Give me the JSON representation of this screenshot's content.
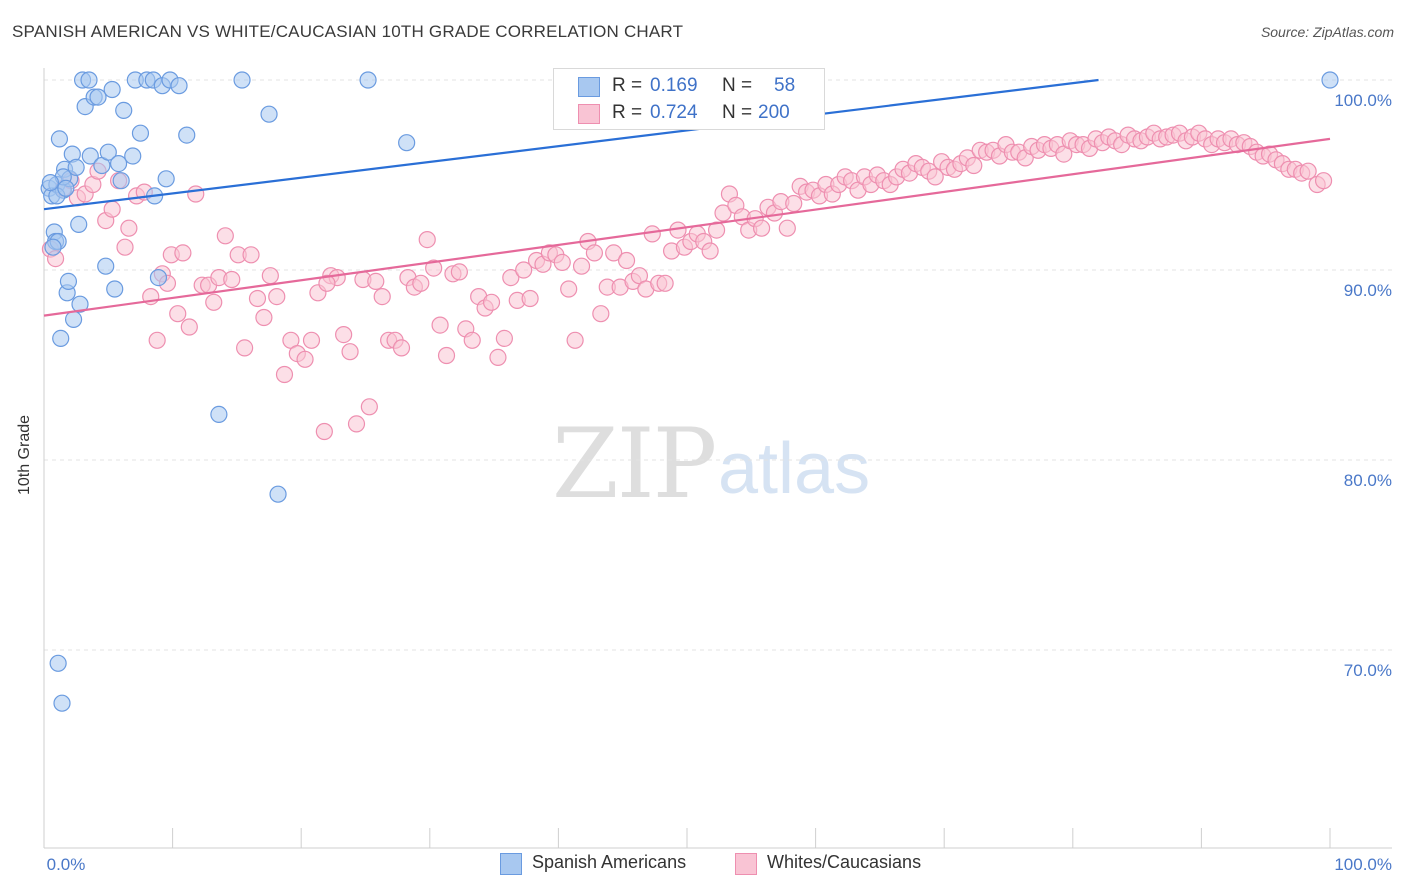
{
  "title": "SPANISH AMERICAN VS WHITE/CAUCASIAN 10TH GRADE CORRELATION CHART",
  "source": "Source: ZipAtlas.com",
  "watermark": {
    "zip": "ZIP",
    "atlas": "atlas"
  },
  "legend": {
    "r_label": "R =",
    "n_label": "N =",
    "rows": [
      {
        "r": "0.169",
        "n": "58",
        "color": "#a8c8f0",
        "edge": "#6a9be0"
      },
      {
        "r": "0.724",
        "n": "200",
        "color": "#f9c4d4",
        "edge": "#ee8fb0"
      }
    ]
  },
  "bottom_legend": [
    {
      "label": "Spanish Americans",
      "color": "#a8c8f0",
      "edge": "#6a9be0"
    },
    {
      "label": "Whites/Caucasians",
      "color": "#f9c4d4",
      "edge": "#ee8fb0"
    }
  ],
  "chart_data": {
    "type": "scatter",
    "title": "SPANISH AMERICAN VS WHITE/CAUCASIAN 10TH GRADE CORRELATION CHART",
    "xlabel": "",
    "ylabel": "10th Grade",
    "xlim": [
      0,
      100
    ],
    "ylim": [
      60.5,
      100.8
    ],
    "x_tick_labels": [
      "0.0%",
      "100.0%"
    ],
    "y_ticks": [
      70,
      80,
      90,
      100
    ],
    "y_tick_labels": [
      "70.0%",
      "80.0%",
      "90.0%",
      "100.0%"
    ],
    "grid": true,
    "legend_position": "top-center",
    "series": [
      {
        "name": "Spanish Americans",
        "color": "#6a9be0",
        "fill": "#a8c8f0",
        "trend": {
          "x": [
            0,
            82
          ],
          "y": [
            93.2,
            100.0
          ],
          "color": "#2a6fd6"
        },
        "points": [
          [
            0.4,
            94.3
          ],
          [
            0.6,
            93.9
          ],
          [
            0.8,
            92.0
          ],
          [
            0.9,
            91.5
          ],
          [
            1.0,
            94.5
          ],
          [
            1.1,
            91.5
          ],
          [
            1.2,
            96.9
          ],
          [
            1.3,
            86.4
          ],
          [
            1.5,
            94.2
          ],
          [
            1.6,
            95.3
          ],
          [
            1.8,
            88.8
          ],
          [
            1.9,
            89.4
          ],
          [
            2.0,
            94.8
          ],
          [
            2.2,
            96.1
          ],
          [
            2.3,
            87.4
          ],
          [
            2.5,
            95.4
          ],
          [
            2.7,
            92.4
          ],
          [
            2.8,
            88.2
          ],
          [
            3.0,
            100.0
          ],
          [
            3.2,
            98.6
          ],
          [
            3.5,
            100.0
          ],
          [
            3.6,
            96.0
          ],
          [
            3.9,
            99.1
          ],
          [
            4.2,
            99.1
          ],
          [
            4.5,
            95.5
          ],
          [
            4.8,
            90.2
          ],
          [
            5.0,
            96.2
          ],
          [
            5.3,
            99.5
          ],
          [
            5.5,
            89.0
          ],
          [
            5.8,
            95.6
          ],
          [
            6.0,
            94.7
          ],
          [
            6.2,
            98.4
          ],
          [
            6.9,
            96.0
          ],
          [
            7.1,
            100.0
          ],
          [
            7.5,
            97.2
          ],
          [
            8.0,
            100.0
          ],
          [
            8.5,
            100.0
          ],
          [
            8.6,
            93.9
          ],
          [
            8.9,
            89.6
          ],
          [
            9.2,
            99.7
          ],
          [
            9.5,
            94.8
          ],
          [
            9.8,
            100.0
          ],
          [
            10.5,
            99.7
          ],
          [
            11.1,
            97.1
          ],
          [
            13.6,
            82.4
          ],
          [
            15.4,
            100.0
          ],
          [
            17.5,
            98.2
          ],
          [
            18.2,
            78.2
          ],
          [
            25.2,
            100.0
          ],
          [
            28.2,
            96.7
          ],
          [
            1.1,
            69.3
          ],
          [
            1.4,
            67.2
          ],
          [
            1.5,
            94.9
          ],
          [
            1.0,
            93.9
          ],
          [
            0.5,
            94.6
          ],
          [
            1.7,
            94.3
          ],
          [
            0.7,
            91.2
          ],
          [
            100.0,
            100.0
          ]
        ]
      },
      {
        "name": "Whites/Caucasians",
        "color": "#ee8fb0",
        "fill": "#f9c4d4",
        "trend": {
          "x": [
            0,
            100
          ],
          "y": [
            87.6,
            96.9
          ],
          "color": "#e5699a"
        },
        "points": [
          [
            0.5,
            91.1
          ],
          [
            0.9,
            90.6
          ],
          [
            1.5,
            94.3
          ],
          [
            2.1,
            94.7
          ],
          [
            2.6,
            93.8
          ],
          [
            3.2,
            94.0
          ],
          [
            3.8,
            94.5
          ],
          [
            4.2,
            95.2
          ],
          [
            4.8,
            92.6
          ],
          [
            5.3,
            93.2
          ],
          [
            5.8,
            94.7
          ],
          [
            6.3,
            91.2
          ],
          [
            6.6,
            92.2
          ],
          [
            7.2,
            93.9
          ],
          [
            7.8,
            94.1
          ],
          [
            8.3,
            88.6
          ],
          [
            8.8,
            86.3
          ],
          [
            9.2,
            89.8
          ],
          [
            9.6,
            89.3
          ],
          [
            9.9,
            90.8
          ],
          [
            10.4,
            87.7
          ],
          [
            10.8,
            90.9
          ],
          [
            11.3,
            87.0
          ],
          [
            11.8,
            94.0
          ],
          [
            12.3,
            89.2
          ],
          [
            12.8,
            89.2
          ],
          [
            13.2,
            88.3
          ],
          [
            13.6,
            89.6
          ],
          [
            14.1,
            91.8
          ],
          [
            14.6,
            89.5
          ],
          [
            15.1,
            90.8
          ],
          [
            15.6,
            85.9
          ],
          [
            16.1,
            90.8
          ],
          [
            16.6,
            88.5
          ],
          [
            17.1,
            87.5
          ],
          [
            17.6,
            89.7
          ],
          [
            18.1,
            88.6
          ],
          [
            18.7,
            84.5
          ],
          [
            19.2,
            86.3
          ],
          [
            19.7,
            85.6
          ],
          [
            20.3,
            85.3
          ],
          [
            20.8,
            86.3
          ],
          [
            21.3,
            88.8
          ],
          [
            21.8,
            81.5
          ],
          [
            22.3,
            89.7
          ],
          [
            22.8,
            89.6
          ],
          [
            23.3,
            86.6
          ],
          [
            23.8,
            85.7
          ],
          [
            24.3,
            81.9
          ],
          [
            24.8,
            89.5
          ],
          [
            25.3,
            82.8
          ],
          [
            25.8,
            89.4
          ],
          [
            26.3,
            88.6
          ],
          [
            26.8,
            86.3
          ],
          [
            27.3,
            86.3
          ],
          [
            27.8,
            85.9
          ],
          [
            28.3,
            89.6
          ],
          [
            28.8,
            89.1
          ],
          [
            29.3,
            89.3
          ],
          [
            29.8,
            91.6
          ],
          [
            30.3,
            90.1
          ],
          [
            30.8,
            87.1
          ],
          [
            31.3,
            85.5
          ],
          [
            31.8,
            89.8
          ],
          [
            32.3,
            89.9
          ],
          [
            32.8,
            86.9
          ],
          [
            33.3,
            86.3
          ],
          [
            33.8,
            88.6
          ],
          [
            34.3,
            88.0
          ],
          [
            34.8,
            88.3
          ],
          [
            35.3,
            85.4
          ],
          [
            35.8,
            86.4
          ],
          [
            36.3,
            89.6
          ],
          [
            36.8,
            88.4
          ],
          [
            37.3,
            90.0
          ],
          [
            37.8,
            88.5
          ],
          [
            38.3,
            90.5
          ],
          [
            38.8,
            90.3
          ],
          [
            39.3,
            90.9
          ],
          [
            39.8,
            90.8
          ],
          [
            40.3,
            90.4
          ],
          [
            40.8,
            89.0
          ],
          [
            41.3,
            86.3
          ],
          [
            41.8,
            90.2
          ],
          [
            42.3,
            91.5
          ],
          [
            42.8,
            90.9
          ],
          [
            43.3,
            87.7
          ],
          [
            43.8,
            89.1
          ],
          [
            44.3,
            90.9
          ],
          [
            44.8,
            89.1
          ],
          [
            45.3,
            90.5
          ],
          [
            45.8,
            89.4
          ],
          [
            46.3,
            89.7
          ],
          [
            46.8,
            89.0
          ],
          [
            47.3,
            91.9
          ],
          [
            47.8,
            89.3
          ],
          [
            48.3,
            89.3
          ],
          [
            48.8,
            91.0
          ],
          [
            49.3,
            92.1
          ],
          [
            49.8,
            91.2
          ],
          [
            50.3,
            91.5
          ],
          [
            50.8,
            91.9
          ],
          [
            51.3,
            91.5
          ],
          [
            51.8,
            91.0
          ],
          [
            52.3,
            92.1
          ],
          [
            52.8,
            93.0
          ],
          [
            53.3,
            94.0
          ],
          [
            53.8,
            93.4
          ],
          [
            54.3,
            92.8
          ],
          [
            54.8,
            92.1
          ],
          [
            55.3,
            92.7
          ],
          [
            55.8,
            92.2
          ],
          [
            56.3,
            93.3
          ],
          [
            56.8,
            93.0
          ],
          [
            57.3,
            93.6
          ],
          [
            57.8,
            92.2
          ],
          [
            58.3,
            93.5
          ],
          [
            58.8,
            94.4
          ],
          [
            59.3,
            94.1
          ],
          [
            59.8,
            94.2
          ],
          [
            60.3,
            93.9
          ],
          [
            60.8,
            94.5
          ],
          [
            61.3,
            94.0
          ],
          [
            61.8,
            94.5
          ],
          [
            62.3,
            94.9
          ],
          [
            62.8,
            94.7
          ],
          [
            63.3,
            94.2
          ],
          [
            63.8,
            94.9
          ],
          [
            64.3,
            94.5
          ],
          [
            64.8,
            95.0
          ],
          [
            65.3,
            94.7
          ],
          [
            65.8,
            94.5
          ],
          [
            66.3,
            94.9
          ],
          [
            66.8,
            95.3
          ],
          [
            67.3,
            95.1
          ],
          [
            67.8,
            95.6
          ],
          [
            68.3,
            95.4
          ],
          [
            68.8,
            95.2
          ],
          [
            69.3,
            94.9
          ],
          [
            69.8,
            95.7
          ],
          [
            70.3,
            95.4
          ],
          [
            70.8,
            95.3
          ],
          [
            71.3,
            95.6
          ],
          [
            71.8,
            95.9
          ],
          [
            72.3,
            95.5
          ],
          [
            72.8,
            96.3
          ],
          [
            73.3,
            96.2
          ],
          [
            73.8,
            96.3
          ],
          [
            74.3,
            96.0
          ],
          [
            74.8,
            96.6
          ],
          [
            75.3,
            96.2
          ],
          [
            75.8,
            96.2
          ],
          [
            76.3,
            95.9
          ],
          [
            76.8,
            96.5
          ],
          [
            77.3,
            96.3
          ],
          [
            77.8,
            96.6
          ],
          [
            78.3,
            96.4
          ],
          [
            78.8,
            96.6
          ],
          [
            79.3,
            96.1
          ],
          [
            79.8,
            96.8
          ],
          [
            80.3,
            96.6
          ],
          [
            80.8,
            96.6
          ],
          [
            81.3,
            96.4
          ],
          [
            81.8,
            96.9
          ],
          [
            82.3,
            96.7
          ],
          [
            82.8,
            97.0
          ],
          [
            83.3,
            96.8
          ],
          [
            83.8,
            96.6
          ],
          [
            84.3,
            97.1
          ],
          [
            84.8,
            96.9
          ],
          [
            85.3,
            96.8
          ],
          [
            85.8,
            97.0
          ],
          [
            86.3,
            97.2
          ],
          [
            86.8,
            96.9
          ],
          [
            87.3,
            97.0
          ],
          [
            87.8,
            97.1
          ],
          [
            88.3,
            97.2
          ],
          [
            88.8,
            96.8
          ],
          [
            89.3,
            97.0
          ],
          [
            89.8,
            97.2
          ],
          [
            90.3,
            96.9
          ],
          [
            90.8,
            96.6
          ],
          [
            91.3,
            96.9
          ],
          [
            91.8,
            96.7
          ],
          [
            92.3,
            96.9
          ],
          [
            92.8,
            96.6
          ],
          [
            93.3,
            96.7
          ],
          [
            93.8,
            96.5
          ],
          [
            94.3,
            96.2
          ],
          [
            94.8,
            96.0
          ],
          [
            95.3,
            96.1
          ],
          [
            95.8,
            95.8
          ],
          [
            96.3,
            95.6
          ],
          [
            96.8,
            95.3
          ],
          [
            97.3,
            95.3
          ],
          [
            97.8,
            95.1
          ],
          [
            98.3,
            95.2
          ],
          [
            99.0,
            94.5
          ],
          [
            99.5,
            94.7
          ],
          [
            22.0,
            89.3
          ]
        ]
      }
    ]
  }
}
